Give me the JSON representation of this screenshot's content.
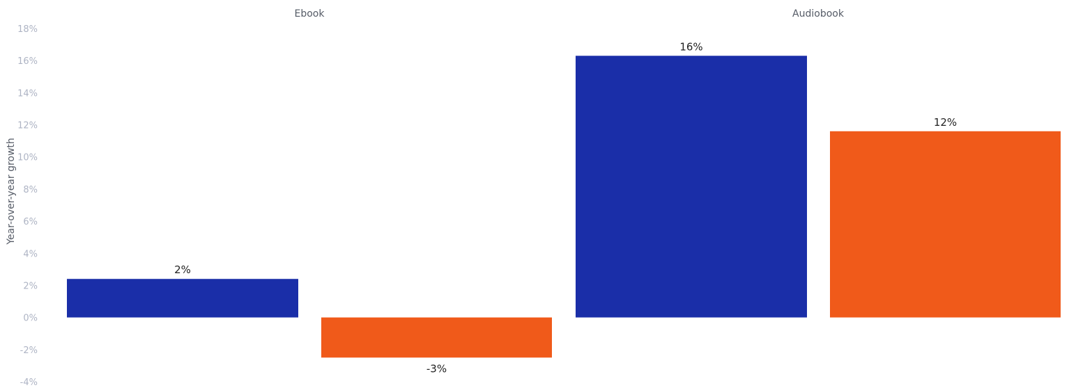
{
  "chart_data": {
    "type": "bar",
    "ylabel": "Year-over-year growth",
    "ylim": [
      -4,
      18
    ],
    "yticks": [
      18,
      16,
      14,
      12,
      10,
      8,
      6,
      4,
      2,
      0,
      -2,
      -4
    ],
    "y_tick_labels": [
      "18%",
      "16%",
      "14%",
      "12%",
      "10%",
      "8%",
      "6%",
      "4%",
      "2%",
      "0%",
      "-2%",
      "-4%"
    ],
    "grid": false,
    "legend": "none",
    "panels": [
      {
        "title": "Ebook",
        "bars": [
          {
            "value": 2.4,
            "label": "2%",
            "color": "#1a2ea8"
          },
          {
            "value": -2.5,
            "label": "-3%",
            "color": "#f05a1a"
          }
        ]
      },
      {
        "title": "Audiobook",
        "bars": [
          {
            "value": 16.3,
            "label": "16%",
            "color": "#1a2ea8"
          },
          {
            "value": 11.6,
            "label": "12%",
            "color": "#f05a1a"
          }
        ]
      }
    ]
  }
}
